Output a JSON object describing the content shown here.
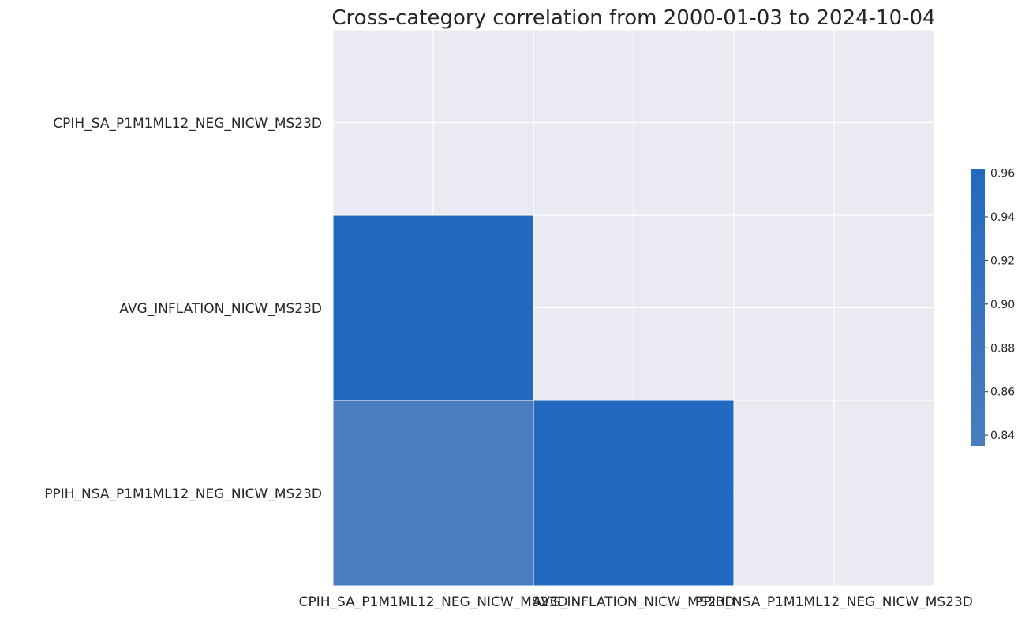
{
  "chart_data": {
    "type": "heatmap",
    "title": "Cross-category correlation from 2000-01-03 to 2024-10-04",
    "xlabel": "",
    "ylabel": "",
    "rows": [
      "CPIH_SA_P1M1ML12_NEG_NICW_MS23D",
      "AVG_INFLATION_NICW_MS23D",
      "PPIH_NSA_P1M1ML12_NEG_NICW_MS23D"
    ],
    "columns": [
      "CPIH_SA_P1M1ML12_NEG_NICW_MS23D",
      "AVG_INFLATION_NICW_MS23D",
      "PPIH_NSA_P1M1ML12_NEG_NICW_MS23D"
    ],
    "values": [
      [
        null,
        null,
        null
      ],
      [
        0.962,
        null,
        null
      ],
      [
        0.835,
        0.962,
        null
      ]
    ],
    "mask": "upper triangle including diagonal",
    "colorbar": {
      "ticks": [
        "0.84",
        "0.86",
        "0.88",
        "0.90",
        "0.92",
        "0.94",
        "0.96"
      ],
      "vmin": 0.835,
      "vmax": 0.962,
      "color_low": "#4a7dbe",
      "color_high": "#2369c0"
    },
    "background_color": "#eaeaf2",
    "grid": true
  }
}
